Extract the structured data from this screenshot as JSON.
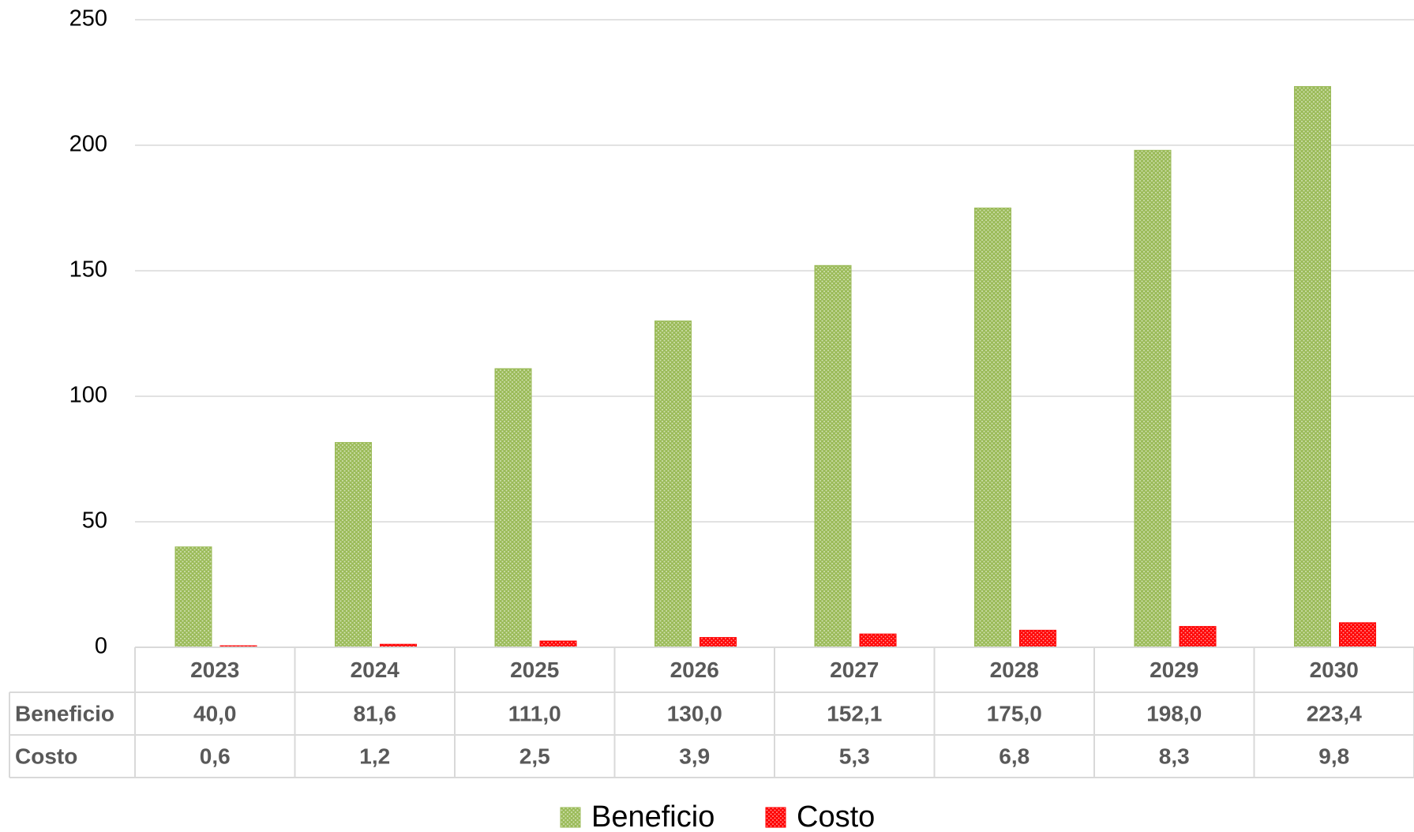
{
  "chart_data": {
    "type": "bar",
    "categories": [
      "2023",
      "2024",
      "2025",
      "2026",
      "2027",
      "2028",
      "2029",
      "2030"
    ],
    "series": [
      {
        "name": "Beneficio",
        "color": "#9bbb59",
        "values": [
          40.0,
          81.6,
          111.0,
          130.0,
          152.1,
          175.0,
          198.0,
          223.4
        ],
        "value_labels": [
          "40,0",
          "81,6",
          "111,0",
          "130,0",
          "152,1",
          "175,0",
          "198,0",
          "223,4"
        ]
      },
      {
        "name": "Costo",
        "color": "#ff0000",
        "values": [
          0.6,
          1.2,
          2.5,
          3.9,
          5.3,
          6.8,
          8.3,
          9.8
        ],
        "value_labels": [
          "0,6",
          "1,2",
          "2,5",
          "3,9",
          "5,3",
          "6,8",
          "8,3",
          "9,8"
        ]
      }
    ],
    "ylim": [
      0,
      250
    ],
    "yticks": [
      0,
      50,
      100,
      150,
      200,
      250
    ],
    "grid": true
  }
}
